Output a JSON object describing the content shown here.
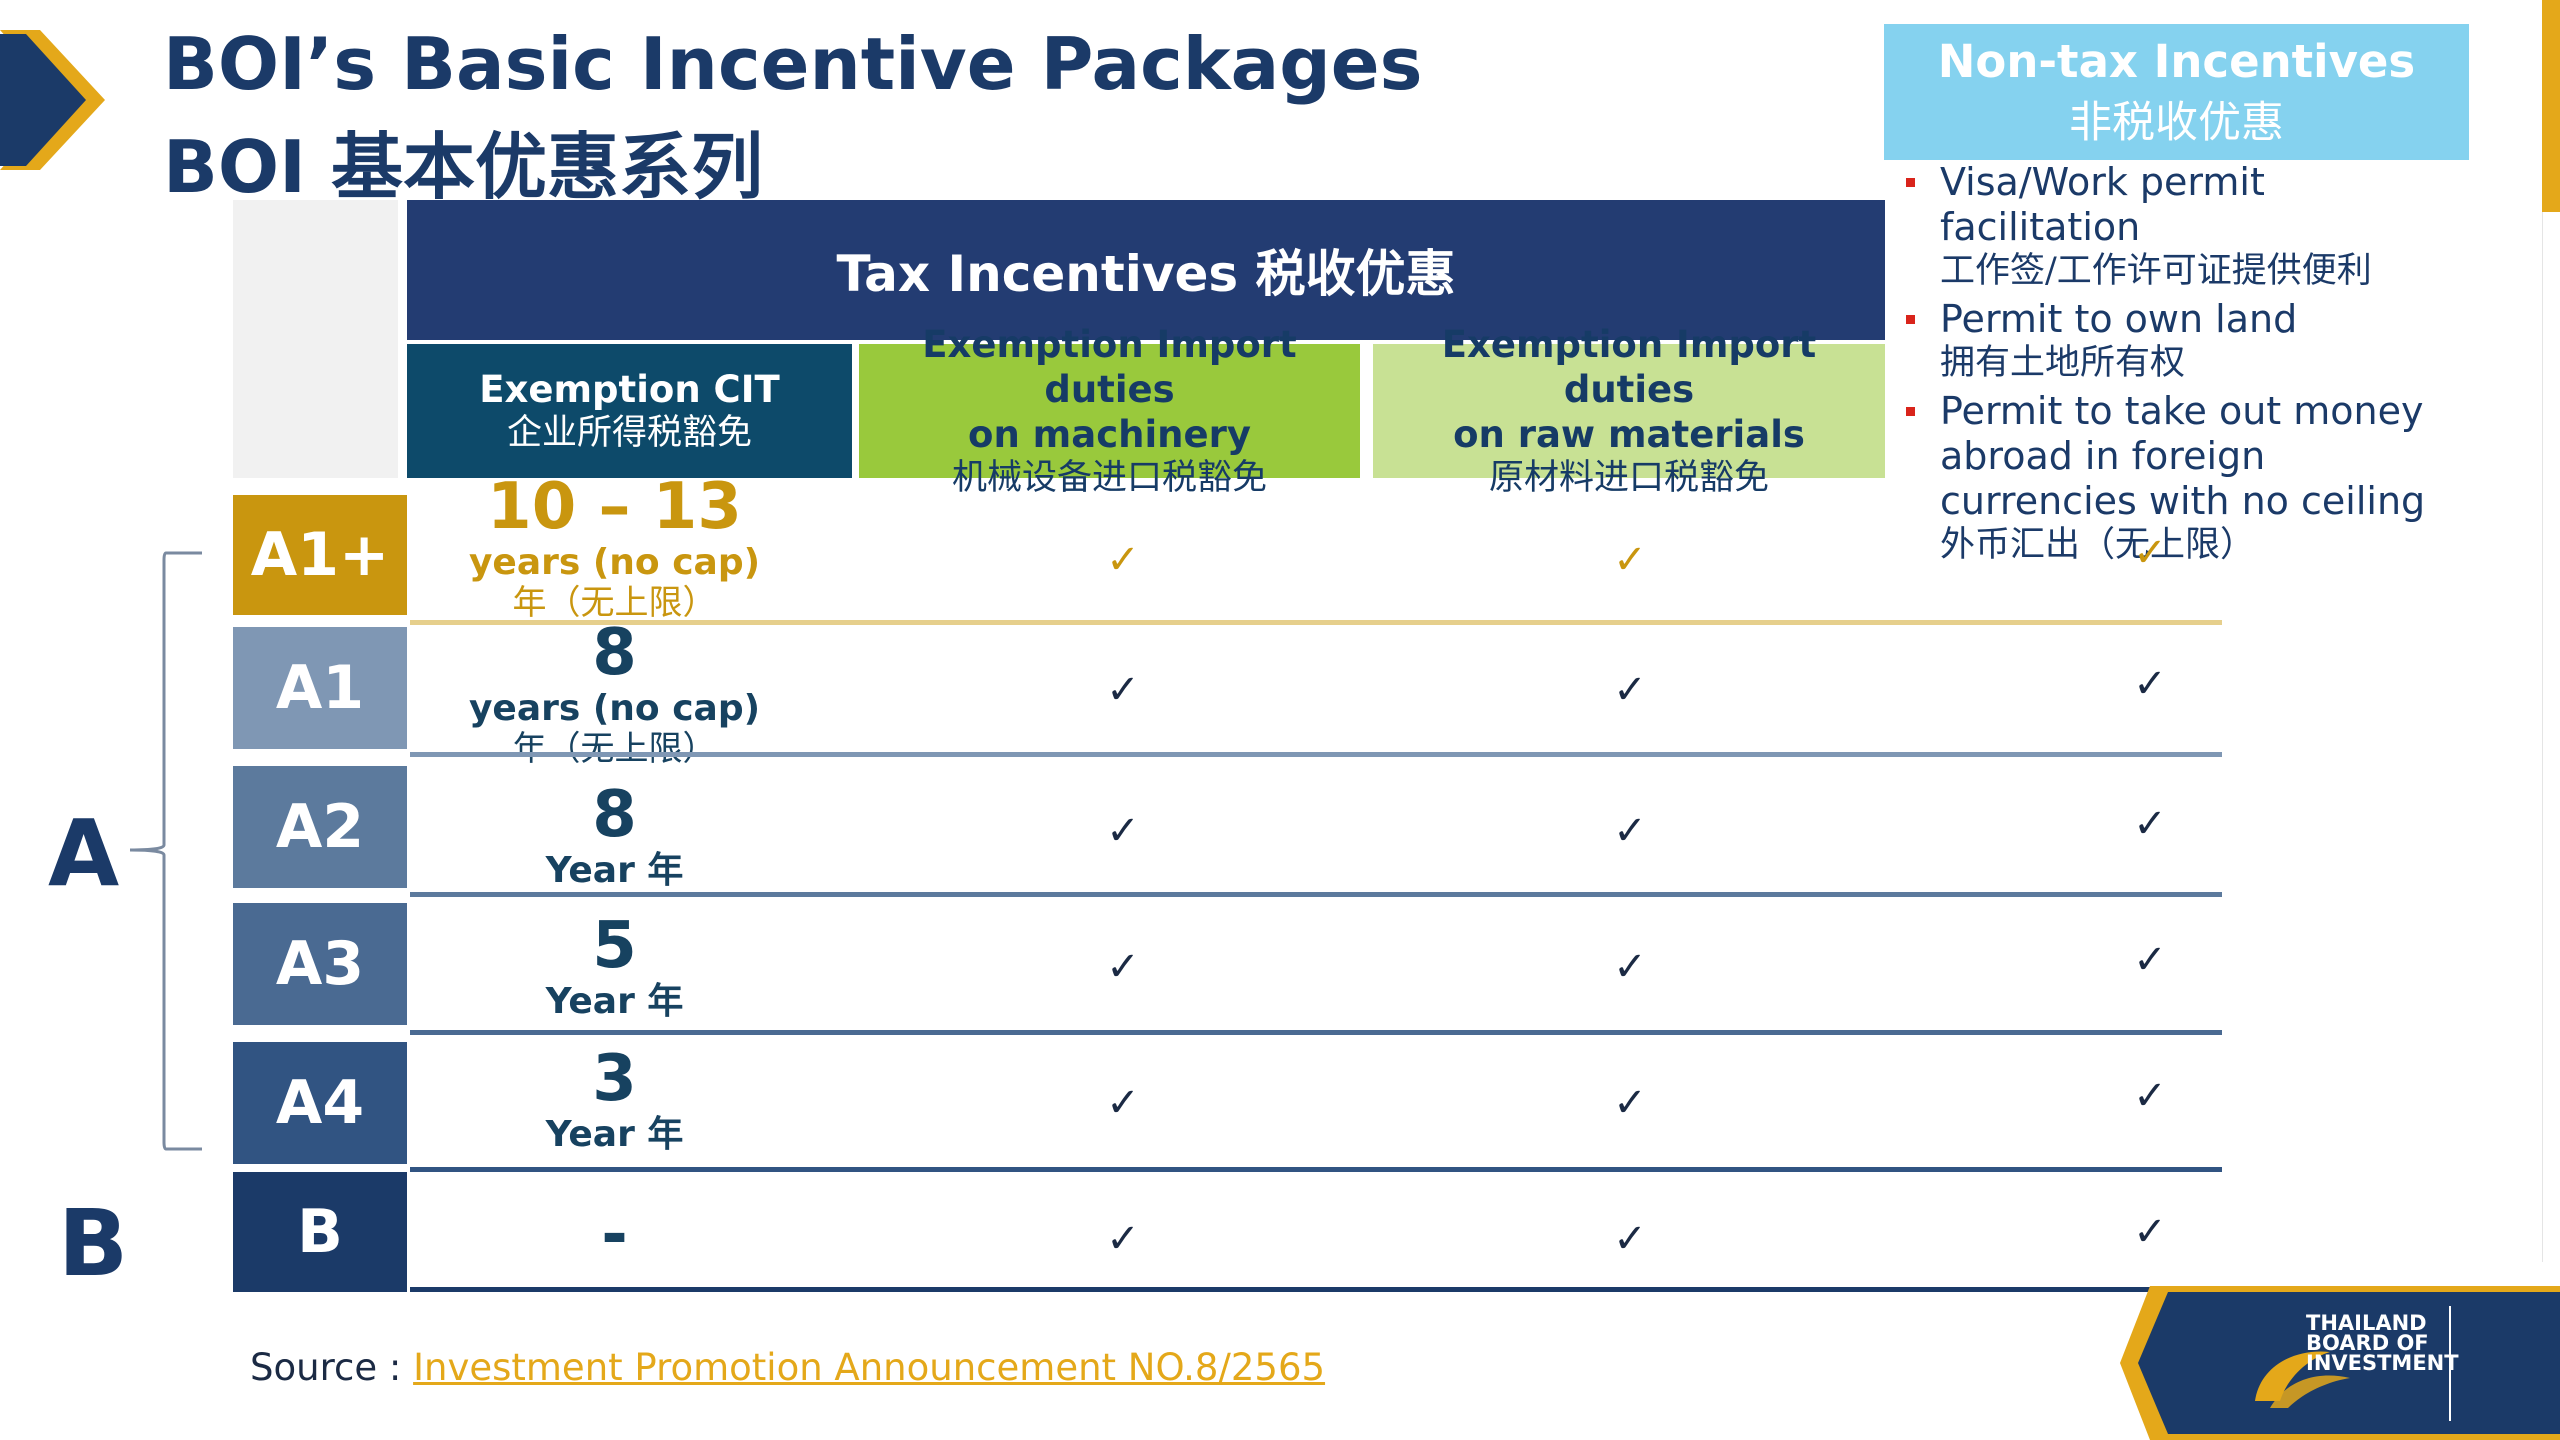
{
  "header": {
    "title_en": "BOI’s Basic Incentive Packages",
    "title_zh": "BOI 基本优惠系列"
  },
  "tax": {
    "title": "Tax Incentives 税收优惠",
    "columns": [
      {
        "en": "Exemption CIT",
        "en2": "",
        "zh": "企业所得税豁免"
      },
      {
        "en": "Exemption Import duties",
        "en2": "on machinery",
        "zh": "机械设备进口税豁免"
      },
      {
        "en": "Exemption Import duties",
        "en2": "on raw materials",
        "zh": "原材料进口税豁免"
      }
    ]
  },
  "nontax": {
    "title_en": "Non-tax Incentives",
    "title_zh": "非税收优惠",
    "items": [
      {
        "en": "Visa/Work permit facilitation",
        "zh": "工作签/工作许可证提供便利"
      },
      {
        "en": "Permit to own land",
        "zh": "拥有土地所有权"
      },
      {
        "en": "Permit to take out money abroad in foreign currencies with no ceiling",
        "zh": "外币汇出（无上限）"
      }
    ]
  },
  "rows": [
    {
      "label": "A1+",
      "cit_num": "10 – 13",
      "cit_unit": "years (no cap)",
      "cit_zh": "年（无上限）",
      "tick": "✓",
      "color": "#c9960f"
    },
    {
      "label": "A1",
      "cit_num": "8",
      "cit_unit": "years (no cap)",
      "cit_zh": "年（无上限）",
      "tick": "✓",
      "color": "#7f97b4"
    },
    {
      "label": "A2",
      "cit_num": "8",
      "cit_unit": "Year 年",
      "cit_zh": "",
      "tick": "✓",
      "color": "#5c7a9d"
    },
    {
      "label": "A3",
      "cit_num": "5",
      "cit_unit": "Year 年",
      "cit_zh": "",
      "tick": "✓",
      "color": "#4a6a92"
    },
    {
      "label": "A4",
      "cit_num": "3",
      "cit_unit": "Year 年",
      "cit_zh": "",
      "tick": "✓",
      "color": "#315482"
    },
    {
      "label": "B",
      "cit_num": "-",
      "cit_unit": "",
      "cit_zh": "",
      "tick": "✓",
      "color": "#1b3a68"
    }
  ],
  "groups": {
    "a": "A",
    "b": "B"
  },
  "source": {
    "label": "Source : ",
    "link_text": "Investment Promotion Announcement NO.8/2565"
  },
  "logo": {
    "line1": "THAILAND",
    "line2": "BOARD OF",
    "line3": "INVESTMENT"
  },
  "colors": {
    "navy": "#1b3a68",
    "gold": "#e4a81a",
    "tax_header": "#233c72",
    "cit": "#0d4a6a",
    "machinery": "#99c93c",
    "raw": "#c8e194",
    "nontax": "#85d2ef",
    "bullet": "#d9241b"
  }
}
